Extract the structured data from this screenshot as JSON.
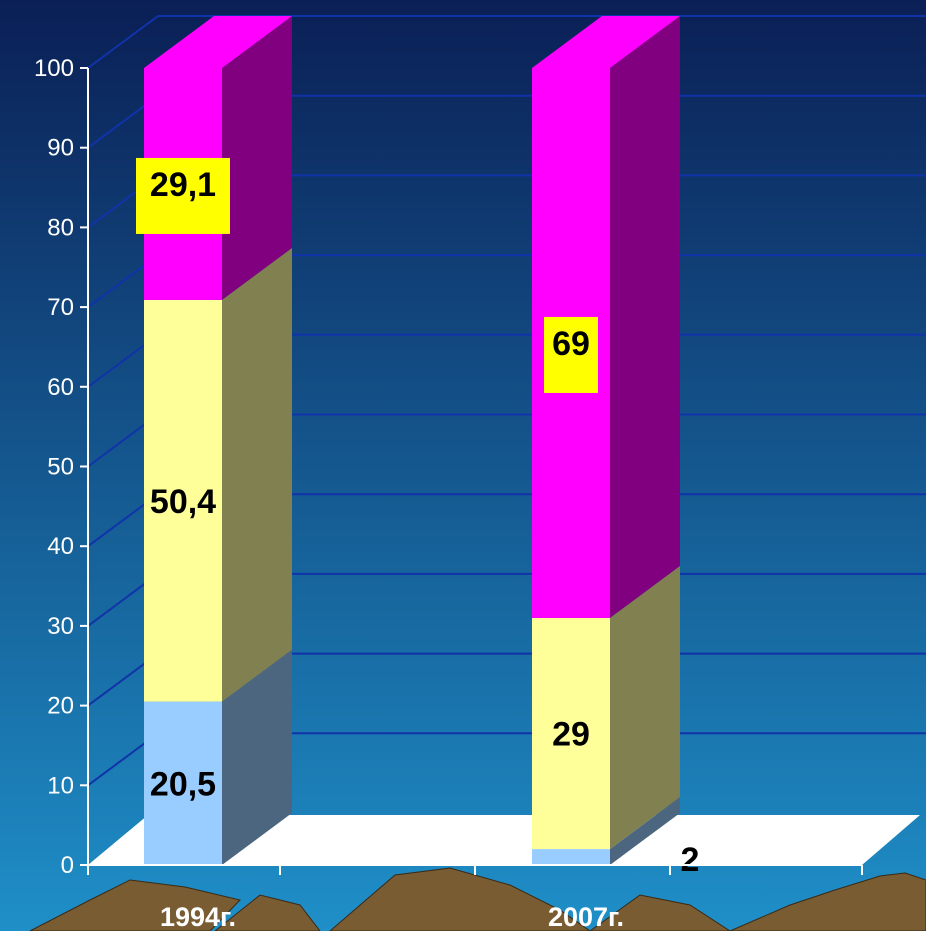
{
  "chart_data": {
    "type": "bar",
    "stacked": true,
    "three_d": true,
    "categories": [
      "1994г.",
      "2007г."
    ],
    "series": [
      {
        "values": [
          20.5,
          2
        ],
        "labels": [
          "20,5",
          "2"
        ],
        "color": "#99ccff",
        "side_color": "#4d6680",
        "label_box": false
      },
      {
        "values": [
          50.4,
          29
        ],
        "labels": [
          "50,4",
          "29"
        ],
        "color": "#ffff99",
        "side_color": "#808050",
        "label_box": false
      },
      {
        "values": [
          29.1,
          69
        ],
        "labels": [
          "29,1",
          "69"
        ],
        "color": "#ff00ff",
        "side_color": "#800080",
        "label_box": true
      }
    ],
    "ylim": [
      0,
      100
    ],
    "yticks": [
      "0",
      "10",
      "20",
      "30",
      "40",
      "50",
      "60",
      "70",
      "80",
      "90",
      "100"
    ],
    "grid": true,
    "xlabel": "",
    "ylabel": "",
    "title": "",
    "colors": {
      "background_top": "#0a1f55",
      "background_bottom": "#1f8fc8",
      "gridline": "#1133aa",
      "axis": "#ffffff",
      "floor": "#ffffff",
      "label_box": "#ffff00",
      "mountains": "#7a5c33"
    }
  }
}
